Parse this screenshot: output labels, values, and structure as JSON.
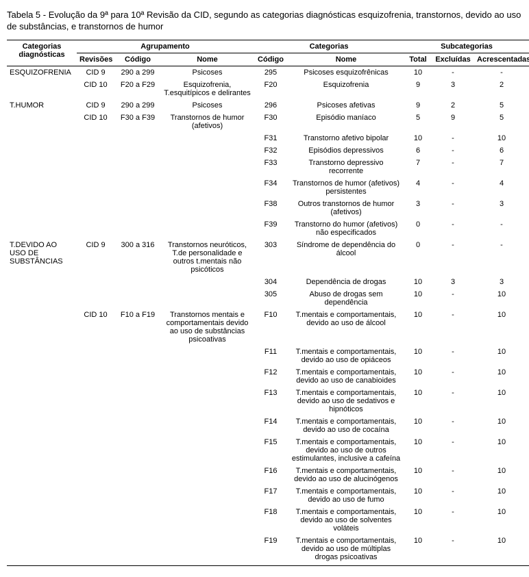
{
  "title": "Tabela 5 - Evolução da 9ª para 10ª Revisão da CID, segundo as categorias diagnósticas esquizofrenia, transtornos, devido ao uso de substâncias, e transtornos de humor",
  "headers": {
    "categorias": "Categorias diagnósticas",
    "agrupamento": "Agrupamento",
    "categorias2": "Categorias",
    "subcategorias": "Subcategorias",
    "revisoes": "Revisões",
    "codigo": "Código",
    "nome": "Nome",
    "total": "Total",
    "excluidas": "Excluídas",
    "acrescentadas": "Acrescentadas"
  },
  "rows": [
    {
      "cat": "ESQUIZOFRENIA",
      "rev": "CID 9",
      "gcod": "290 a 299",
      "gnome": "Psicoses",
      "ccod": "295",
      "cnome": "Psicoses esquizofrênicas",
      "tot": "10",
      "exc": "-",
      "acr": "-"
    },
    {
      "cat": "",
      "rev": "CID 10",
      "gcod": "F20 a F29",
      "gnome": "Esquizofrenia, T.esquitípicos e delirantes",
      "ccod": "F20",
      "cnome": "Esquizofrenia",
      "tot": "9",
      "exc": "3",
      "acr": "2"
    },
    {
      "cat": "T.HUMOR",
      "rev": "CID 9",
      "gcod": "290 a 299",
      "gnome": "Psicoses",
      "ccod": "296",
      "cnome": "Psicoses afetivas",
      "tot": "9",
      "exc": "2",
      "acr": "5"
    },
    {
      "cat": "",
      "rev": "CID 10",
      "gcod": "F30 a F39",
      "gnome": "Transtornos de humor (afetivos)",
      "ccod": "F30",
      "cnome": "Episódio maníaco",
      "tot": "5",
      "exc": "9",
      "acr": "5"
    },
    {
      "cat": "",
      "rev": "",
      "gcod": "",
      "gnome": "",
      "ccod": "F31",
      "cnome": "Transtorno afetivo bipolar",
      "tot": "10",
      "exc": "-",
      "acr": "10"
    },
    {
      "cat": "",
      "rev": "",
      "gcod": "",
      "gnome": "",
      "ccod": "F32",
      "cnome": "Episódios depressivos",
      "tot": "6",
      "exc": "-",
      "acr": "6"
    },
    {
      "cat": "",
      "rev": "",
      "gcod": "",
      "gnome": "",
      "ccod": "F33",
      "cnome": "Transtorno depressivo recorrente",
      "tot": "7",
      "exc": "-",
      "acr": "7"
    },
    {
      "cat": "",
      "rev": "",
      "gcod": "",
      "gnome": "",
      "ccod": "F34",
      "cnome": "Transtornos de humor (afetivos) persistentes",
      "tot": "4",
      "exc": "-",
      "acr": "4"
    },
    {
      "cat": "",
      "rev": "",
      "gcod": "",
      "gnome": "",
      "ccod": "F38",
      "cnome": "Outros transtornos de humor (afetivos)",
      "tot": "3",
      "exc": "-",
      "acr": "3"
    },
    {
      "cat": "",
      "rev": "",
      "gcod": "",
      "gnome": "",
      "ccod": "F39",
      "cnome": "Transtorno do humor (afetivos) não especificados",
      "tot": "0",
      "exc": "-",
      "acr": "-"
    },
    {
      "cat": "T.DEVIDO AO USO DE SUBSTÂNCIAS",
      "rev": "CID 9",
      "gcod": "300 a 316",
      "gnome": "Transtornos neuróticos, T.de personalidade e outros t.mentais não psicóticos",
      "ccod": "303",
      "cnome": "Síndrome de dependência do álcool",
      "tot": "0",
      "exc": "-",
      "acr": "-"
    },
    {
      "cat": "",
      "rev": "",
      "gcod": "",
      "gnome": "",
      "ccod": "304",
      "cnome": "Dependência de drogas",
      "tot": "10",
      "exc": "3",
      "acr": "3"
    },
    {
      "cat": "",
      "rev": "",
      "gcod": "",
      "gnome": "",
      "ccod": "305",
      "cnome": "Abuso de drogas sem dependência",
      "tot": "10",
      "exc": "-",
      "acr": "10"
    },
    {
      "cat": "",
      "rev": "CID 10",
      "gcod": "F10 a F19",
      "gnome": "Transtornos mentais e comportamentais devido ao uso de substâncias psicoativas",
      "ccod": "F10",
      "cnome": "T.mentais e comportamentais, devido ao uso de álcool",
      "tot": "10",
      "exc": "-",
      "acr": "10"
    },
    {
      "cat": "",
      "rev": "",
      "gcod": "",
      "gnome": "",
      "ccod": "F11",
      "cnome": "T.mentais e comportamentais, devido ao uso de opiáceos",
      "tot": "10",
      "exc": "-",
      "acr": "10"
    },
    {
      "cat": "",
      "rev": "",
      "gcod": "",
      "gnome": "",
      "ccod": "F12",
      "cnome": "T.mentais e comportamentais, devido ao uso de canabioides",
      "tot": "10",
      "exc": "-",
      "acr": "10"
    },
    {
      "cat": "",
      "rev": "",
      "gcod": "",
      "gnome": "",
      "ccod": "F13",
      "cnome": "T.mentais e comportamentais, devido ao uso de sedativos e hipnóticos",
      "tot": "10",
      "exc": "-",
      "acr": "10"
    },
    {
      "cat": "",
      "rev": "",
      "gcod": "",
      "gnome": "",
      "ccod": "F14",
      "cnome": "T.mentais e comportamentais, devido ao uso de cocaína",
      "tot": "10",
      "exc": "-",
      "acr": "10"
    },
    {
      "cat": "",
      "rev": "",
      "gcod": "",
      "gnome": "",
      "ccod": "F15",
      "cnome": "T.mentais e comportamentais, devido ao uso de outros estimulantes, inclusive a cafeína",
      "tot": "10",
      "exc": "-",
      "acr": "10"
    },
    {
      "cat": "",
      "rev": "",
      "gcod": "",
      "gnome": "",
      "ccod": "F16",
      "cnome": "T.mentais e comportamentais, devido ao uso de alucinógenos",
      "tot": "10",
      "exc": "-",
      "acr": "10"
    },
    {
      "cat": "",
      "rev": "",
      "gcod": "",
      "gnome": "",
      "ccod": "F17",
      "cnome": "T.mentais e comportamentais, devido ao uso de fumo",
      "tot": "10",
      "exc": "-",
      "acr": "10"
    },
    {
      "cat": "",
      "rev": "",
      "gcod": "",
      "gnome": "",
      "ccod": "F18",
      "cnome": "T.mentais e comportamentais, devido ao uso de solventes voláteis",
      "tot": "10",
      "exc": "-",
      "acr": "10"
    },
    {
      "cat": "",
      "rev": "",
      "gcod": "",
      "gnome": "",
      "ccod": "F19",
      "cnome": "T.mentais e comportamentais, devido ao uso de múltiplas drogas psicoativas",
      "tot": "10",
      "exc": "-",
      "acr": "10"
    }
  ]
}
